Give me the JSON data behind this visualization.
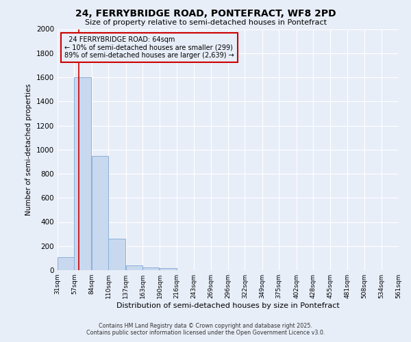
{
  "title": "24, FERRYBRIDGE ROAD, PONTEFRACT, WF8 2PD",
  "subtitle": "Size of property relative to semi-detached houses in Pontefract",
  "xlabel": "Distribution of semi-detached houses by size in Pontefract",
  "ylabel": "Number of semi-detached properties",
  "bin_edges": [
    31,
    57,
    84,
    110,
    137,
    163,
    190,
    216,
    243,
    269,
    296,
    322,
    349,
    375,
    402,
    428,
    455,
    481,
    508,
    534,
    561
  ],
  "bar_heights": [
    110,
    1600,
    950,
    260,
    40,
    20,
    15,
    0,
    0,
    0,
    0,
    0,
    0,
    0,
    0,
    0,
    0,
    0,
    0,
    0
  ],
  "bar_color": "#c8d8ee",
  "bar_edge_color": "#8ab0d8",
  "property_size": 64,
  "property_label": "24 FERRYBRIDGE ROAD: 64sqm",
  "pct_smaller": 10,
  "pct_larger": 89,
  "count_smaller": 299,
  "count_larger": 2639,
  "ylim": [
    0,
    2000
  ],
  "yticks": [
    0,
    200,
    400,
    600,
    800,
    1000,
    1200,
    1400,
    1600,
    1800,
    2000
  ],
  "red_line_color": "#cc0000",
  "annotation_box_color": "#cc0000",
  "bg_color": "#e8eef8",
  "grid_color": "#ffffff",
  "footer_line1": "Contains HM Land Registry data © Crown copyright and database right 2025.",
  "footer_line2": "Contains public sector information licensed under the Open Government Licence v3.0."
}
